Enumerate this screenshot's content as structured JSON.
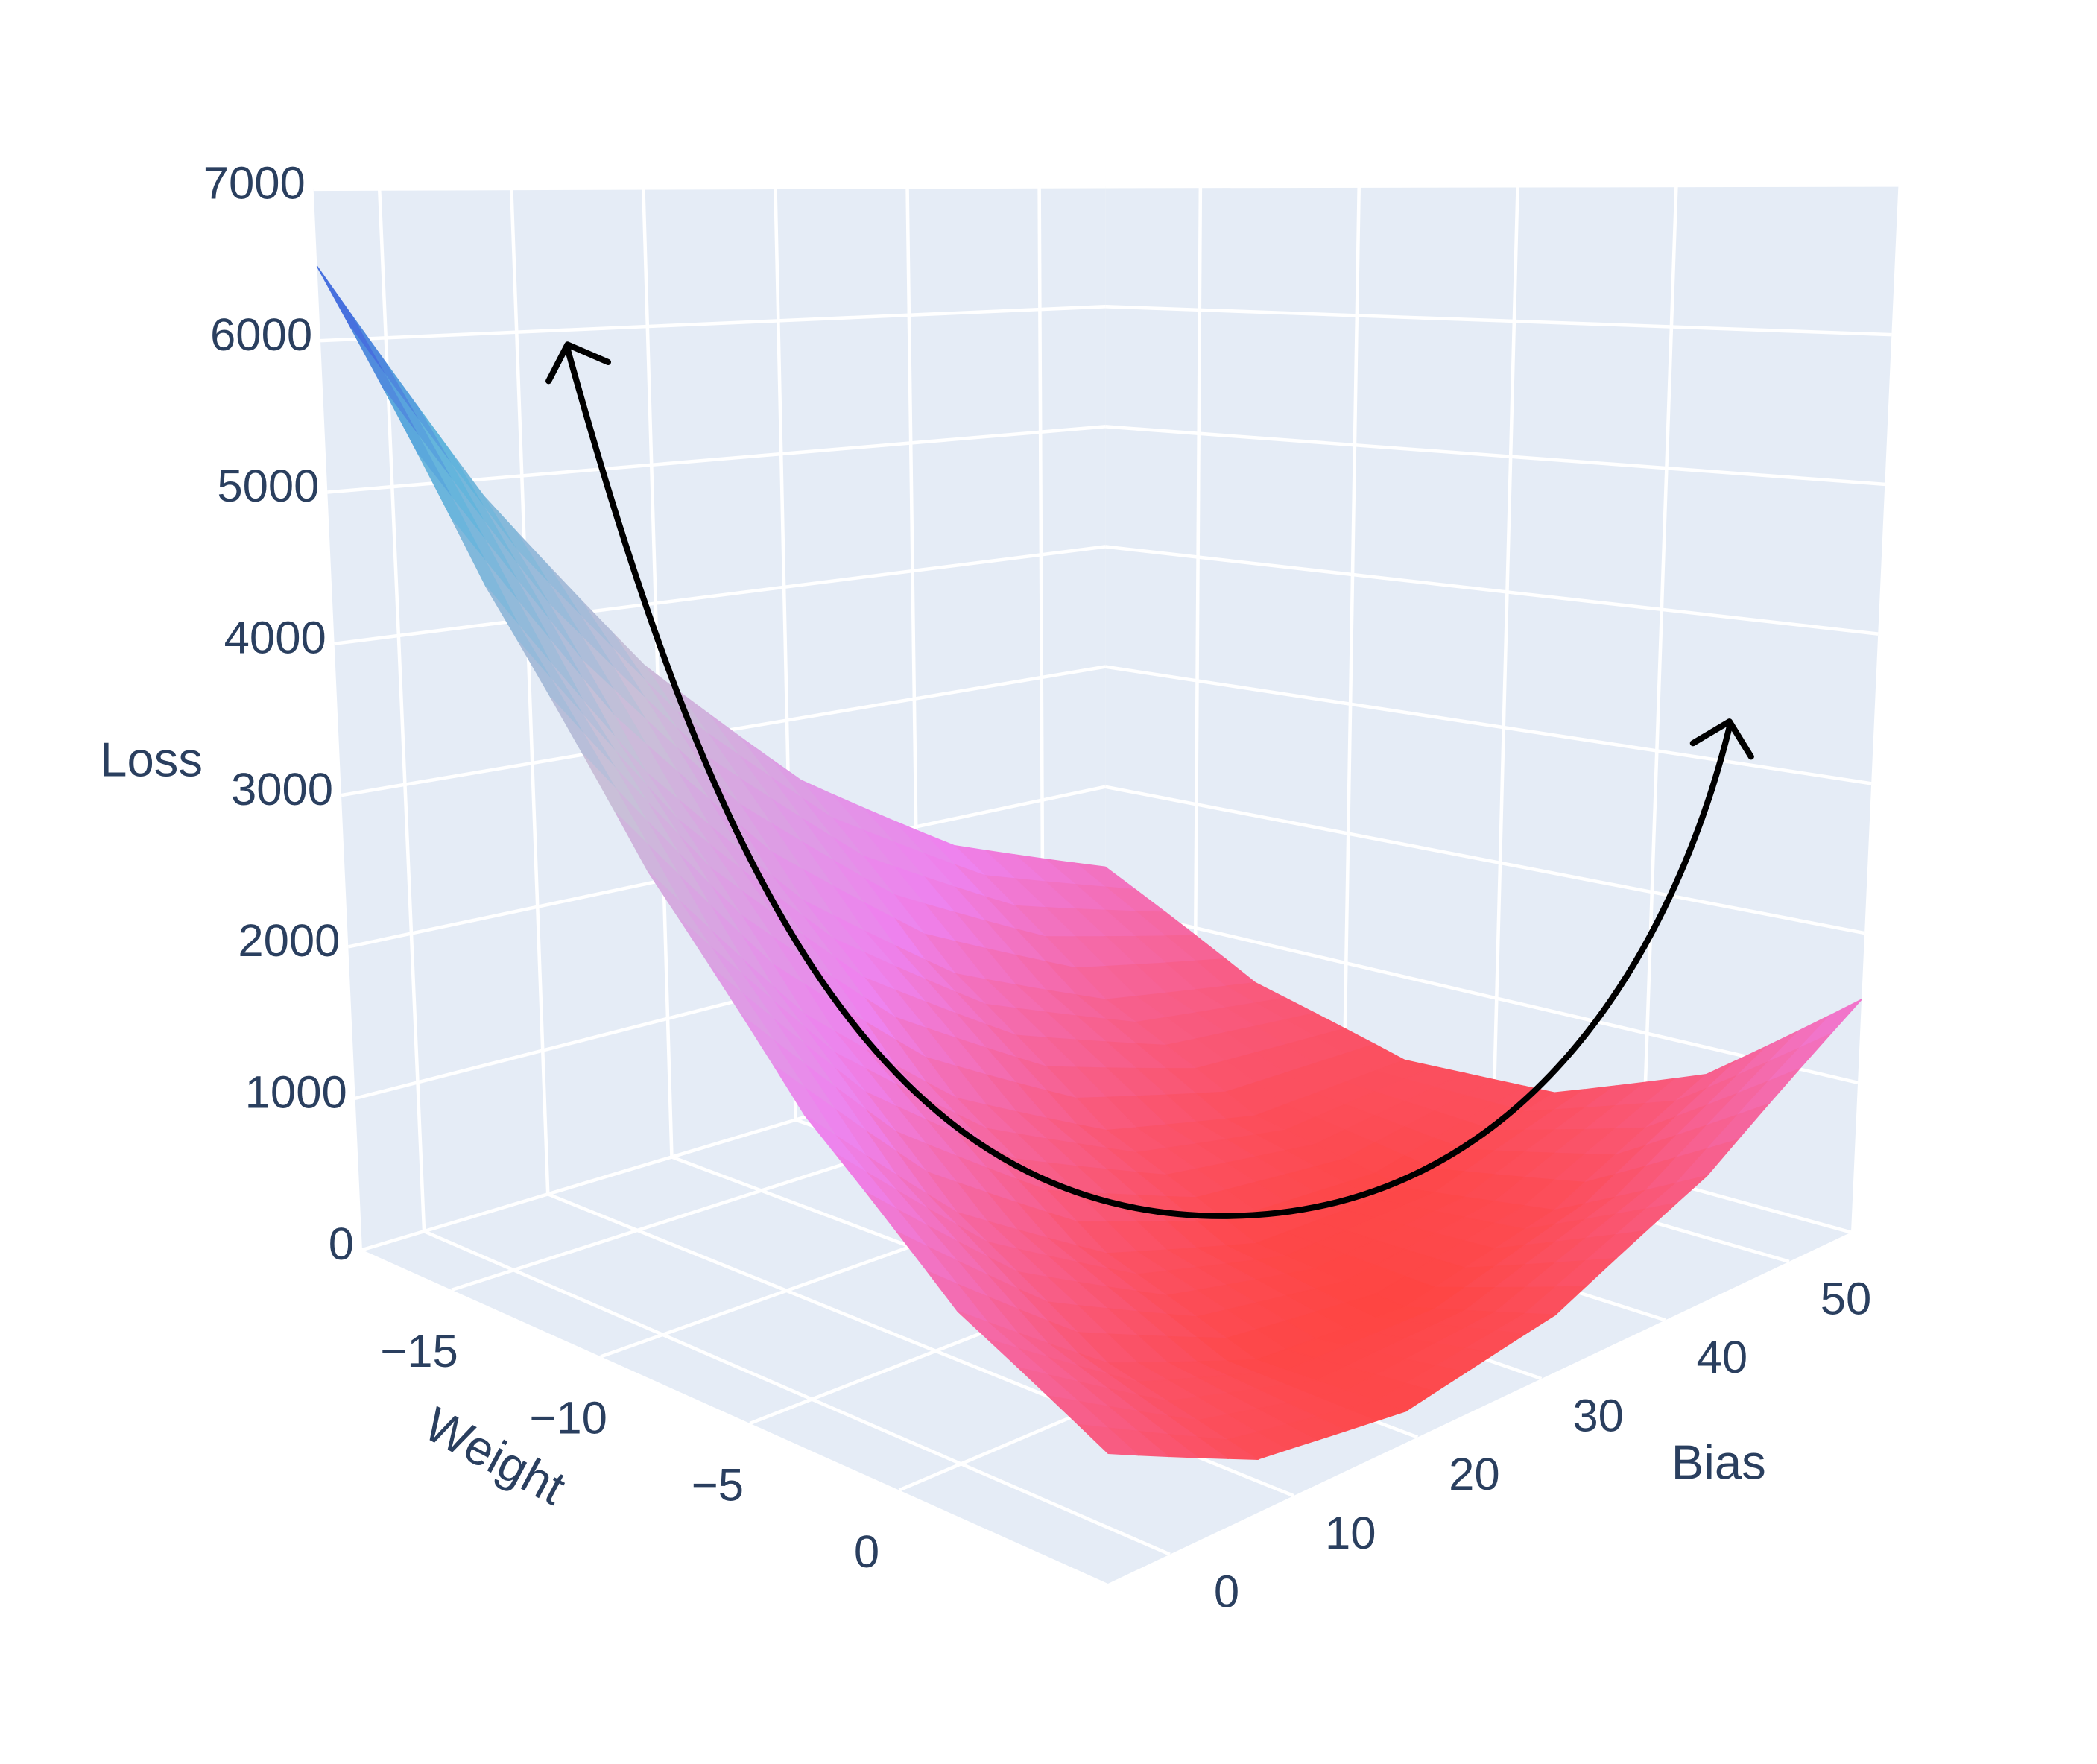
{
  "chart_data": {
    "type": "surface",
    "x_title": "Weight",
    "y_title": "Bias",
    "z_title": "Loss",
    "x": [
      -18,
      -13,
      -8,
      -3,
      2,
      7
    ],
    "y": [
      -5,
      7,
      19,
      31,
      43,
      55
    ],
    "z": [
      [
        6492,
        4884,
        3564,
        2532,
        1788,
        1332
      ],
      [
        4637,
        3269,
        2189,
        1397,
        893,
        677
      ],
      [
        3132,
        2004,
        1164,
        612,
        348,
        372
      ],
      [
        1977,
        1089,
        489,
        177,
        153,
        417
      ],
      [
        1172,
        524,
        164,
        92,
        308,
        812
      ],
      [
        717,
        309,
        189,
        357,
        813,
        1557
      ]
    ],
    "xlim": [
      -18,
      7
    ],
    "ylim": [
      -5,
      55
    ],
    "zlim": [
      0,
      7000
    ],
    "xticks": [
      {
        "value": -15,
        "label": "−15"
      },
      {
        "value": -10,
        "label": "−10"
      },
      {
        "value": -5,
        "label": "−5"
      },
      0
    ],
    "yticks": [
      0,
      10,
      20,
      30,
      40,
      50
    ],
    "zticks": [
      0,
      1000,
      2000,
      3000,
      4000,
      5000,
      6000,
      7000
    ],
    "colorscale": [
      "#ff4136",
      "#ee82ee",
      "#c8c0d8",
      "#5fb4dc",
      "#3030e0"
    ],
    "grid": true
  }
}
